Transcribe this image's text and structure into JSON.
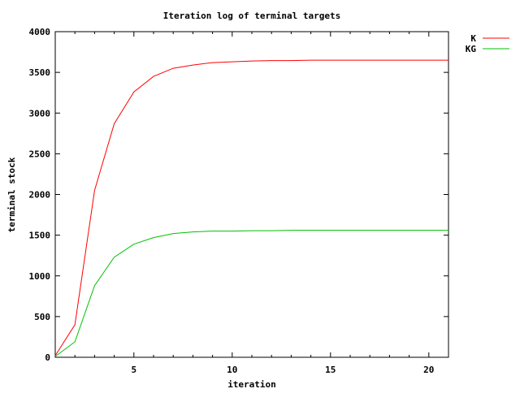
{
  "chart_data": {
    "type": "line",
    "title": "Iteration log of terminal targets",
    "xlabel": "iteration",
    "ylabel": "terminal stock",
    "xlim": [
      1,
      21
    ],
    "ylim": [
      0,
      4000
    ],
    "xticks": [
      5,
      10,
      15,
      20
    ],
    "yticks": [
      0,
      500,
      1000,
      1500,
      2000,
      2500,
      3000,
      3500,
      4000
    ],
    "grid": false,
    "legend_position": "top-right, outside plot",
    "x": [
      1,
      2,
      3,
      4,
      5,
      6,
      7,
      8,
      9,
      10,
      11,
      12,
      13,
      14,
      15,
      16,
      17,
      18,
      19,
      20,
      21
    ],
    "series": [
      {
        "name": "K",
        "color": "#ff0000",
        "values": [
          20,
          400,
          2050,
          2870,
          3260,
          3450,
          3550,
          3590,
          3620,
          3630,
          3640,
          3645,
          3645,
          3650,
          3650,
          3650,
          3650,
          3650,
          3650,
          3650,
          3650
        ]
      },
      {
        "name": "KG",
        "color": "#00c000",
        "values": [
          10,
          190,
          880,
          1230,
          1390,
          1470,
          1520,
          1540,
          1550,
          1550,
          1555,
          1555,
          1560,
          1560,
          1560,
          1560,
          1560,
          1560,
          1560,
          1560,
          1560
        ]
      }
    ]
  }
}
